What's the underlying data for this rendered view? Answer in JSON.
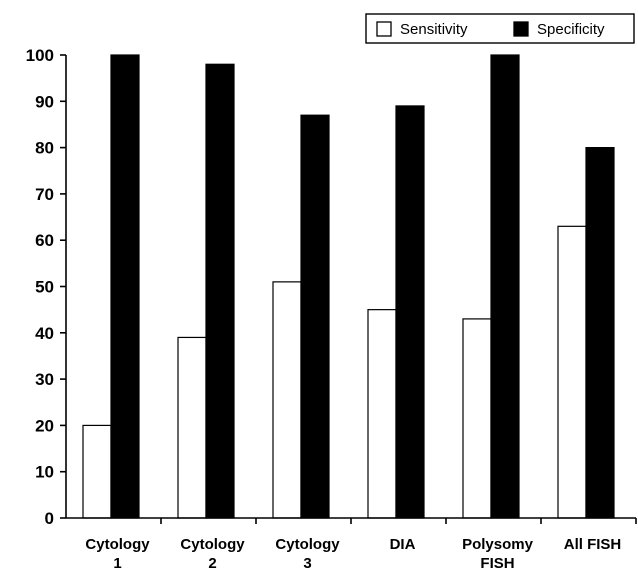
{
  "chart_data": {
    "type": "bar",
    "title": "",
    "xlabel": "",
    "ylabel": "",
    "categories": [
      [
        "Cytology",
        "1"
      ],
      [
        "Cytology",
        "2"
      ],
      [
        "Cytology",
        "3"
      ],
      [
        "DIA"
      ],
      [
        "Polysomy",
        "FISH"
      ],
      [
        "All FISH"
      ]
    ],
    "series": [
      {
        "name": "Sensitivity",
        "color": "#ffffff",
        "values": [
          20,
          39,
          51,
          45,
          43,
          63
        ]
      },
      {
        "name": "Specificity",
        "color": "#000000",
        "values": [
          100,
          98,
          87,
          89,
          100,
          80
        ]
      }
    ],
    "ylim": [
      0,
      100
    ],
    "yticks": [
      0,
      10,
      20,
      30,
      40,
      50,
      60,
      70,
      80,
      90,
      100
    ],
    "grid": false,
    "legend": "top-right"
  }
}
